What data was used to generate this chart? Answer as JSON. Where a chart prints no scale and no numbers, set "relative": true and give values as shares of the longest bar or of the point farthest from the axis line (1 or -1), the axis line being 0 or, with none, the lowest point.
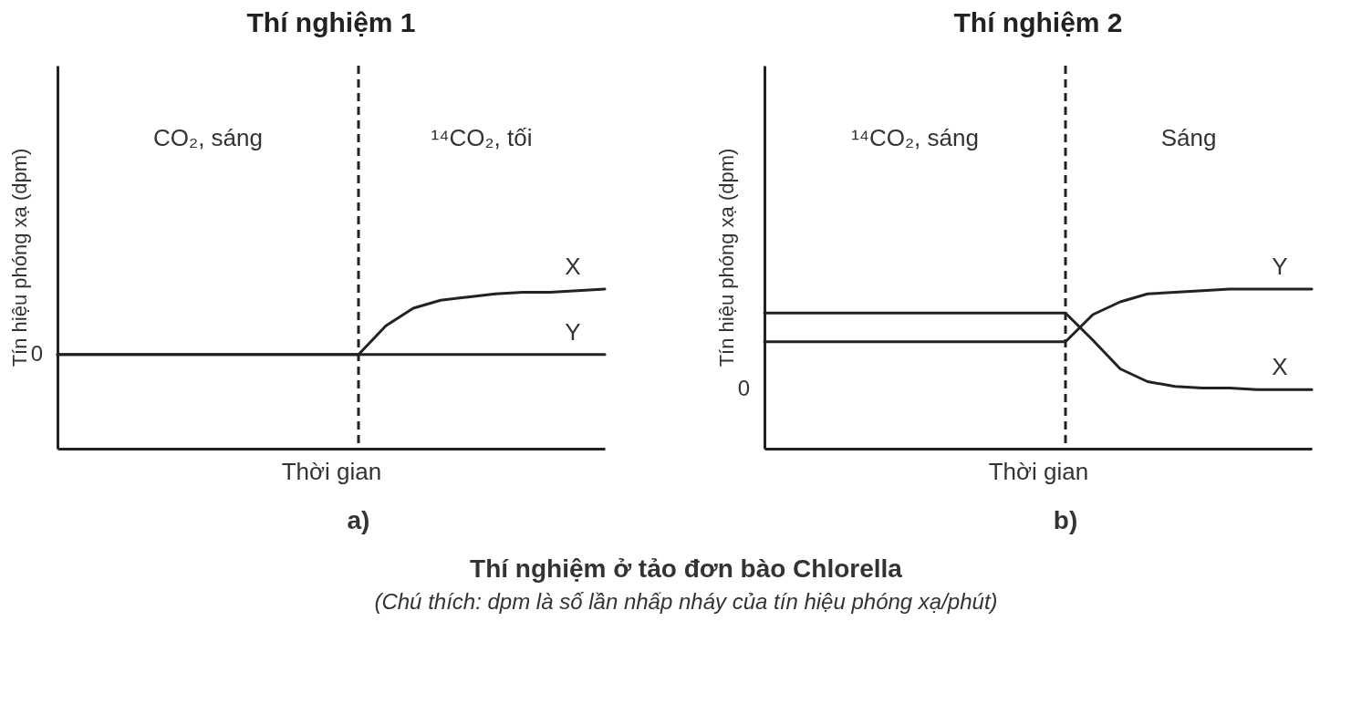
{
  "chart_data": [
    {
      "type": "line",
      "title": "Thí nghiệm 1",
      "xlabel": "Thời gian",
      "ylabel": "Tín hiệu phóng xạ (dpm)",
      "relative": true,
      "tick_labels": false,
      "grid": false,
      "legend": false,
      "marker": "none",
      "line_style": "solid",
      "categories": [
        null,
        null,
        null,
        null,
        null,
        null,
        null,
        null,
        null,
        null,
        null,
        null,
        null,
        null,
        null,
        null,
        null,
        null,
        null,
        null,
        null
      ],
      "annotations": [
        "CO₂, sáng",
        "¹⁴CO₂, tối",
        "a)",
        "0"
      ],
      "series": [
        {
          "name": "X",
          "color": "#222222",
          "values": [
            0.59,
            0.59,
            0.59,
            0.59,
            0.59,
            0.59,
            0.59,
            0.59,
            0.59,
            0.59,
            0.59,
            0.59,
            0.77,
            0.88,
            0.93,
            0.95,
            0.97,
            0.98,
            0.98,
            0.99,
            1
          ]
        },
        {
          "name": "Y",
          "color": "#222222",
          "values": [
            0.59,
            0.59,
            0.59,
            0.59,
            0.59,
            0.59,
            0.59,
            0.59,
            0.59,
            0.59,
            0.59,
            0.59,
            0.59,
            0.59,
            0.59,
            0.59,
            0.59,
            0.59,
            0.59,
            0.59,
            0.59
          ]
        }
      ]
    },
    {
      "type": "line",
      "title": "Thí nghiệm 2",
      "xlabel": "Thời gian",
      "ylabel": "Tín hiệu phóng xạ (dpm)",
      "relative": true,
      "tick_labels": false,
      "grid": false,
      "legend": false,
      "marker": "none",
      "line_style": "solid",
      "categories": [
        null,
        null,
        null,
        null,
        null,
        null,
        null,
        null,
        null,
        null,
        null,
        null,
        null,
        null,
        null,
        null,
        null,
        null,
        null,
        null,
        null
      ],
      "annotations": [
        "¹⁴CO₂, sáng",
        "Sáng",
        "b)",
        "0",
        "Thí nghiệm ở tảo đơn bào Chlorella",
        "(Chú thích: dpm là số lần nhấp nháy của tín hiệu phóng xạ/phút)"
      ],
      "series": [
        {
          "name": "Y",
          "color": "#222222",
          "values": [
            0.67,
            0.67,
            0.67,
            0.67,
            0.67,
            0.67,
            0.67,
            0.67,
            0.67,
            0.67,
            0.67,
            0.67,
            0.84,
            0.92,
            0.97,
            0.98,
            0.99,
            1,
            1,
            1,
            1
          ]
        },
        {
          "name": "X",
          "color": "#222222",
          "values": [
            0.85,
            0.85,
            0.85,
            0.85,
            0.85,
            0.85,
            0.85,
            0.85,
            0.85,
            0.85,
            0.85,
            0.85,
            0.68,
            0.5,
            0.42,
            0.39,
            0.38,
            0.38,
            0.37,
            0.37,
            0.37
          ]
        }
      ]
    }
  ]
}
